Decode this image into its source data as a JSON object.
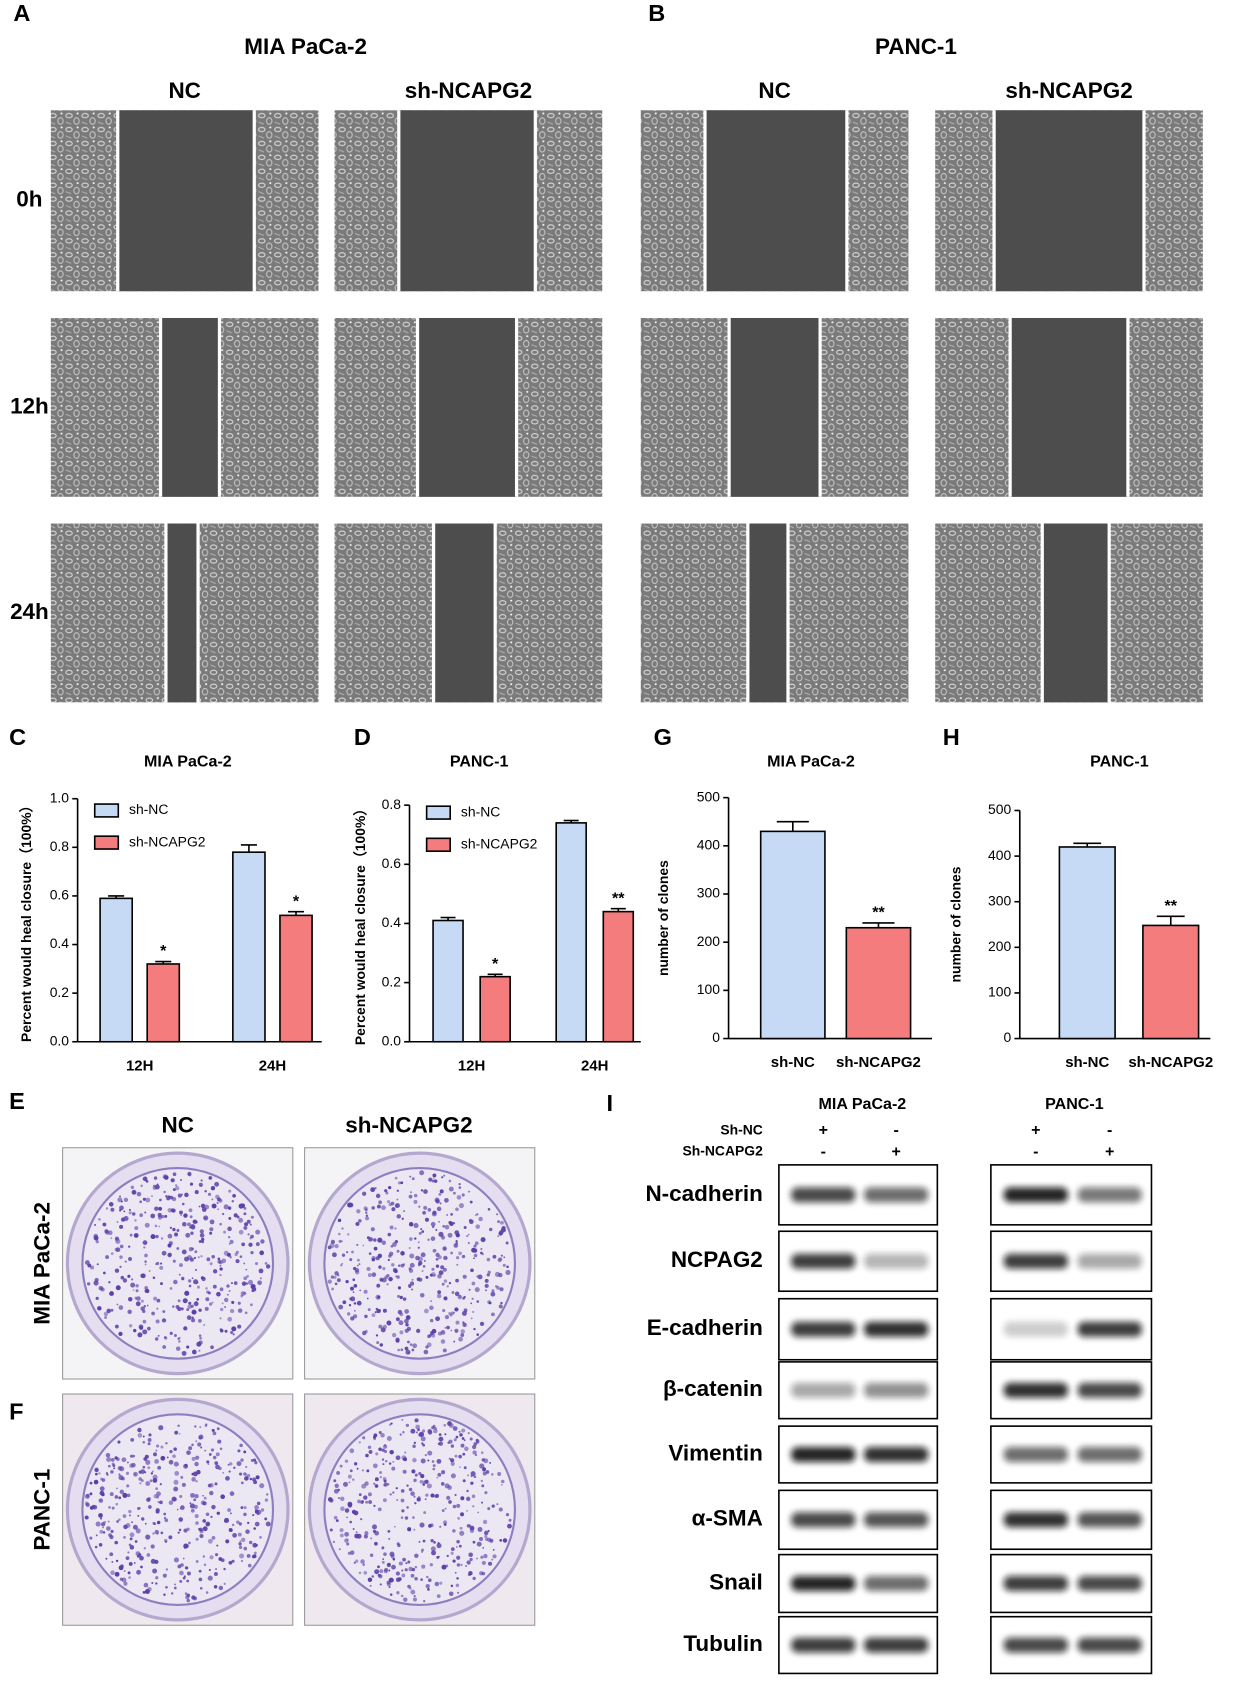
{
  "wound_healing": {
    "panels": [
      {
        "label": "A",
        "title": "MIA PaCa-2",
        "columns": [
          "NC",
          "sh-NCAPG2"
        ]
      },
      {
        "label": "B",
        "title": "PANC-1",
        "columns": [
          "NC",
          "sh-NCAPG2"
        ]
      }
    ],
    "rows": [
      "0h",
      "12h",
      "24h"
    ]
  },
  "chart_data": [
    {
      "type": "bar",
      "panel_label": "C",
      "title": "MIA PaCa-2",
      "y_label": "Percent would heal closure（100%）",
      "categories": [
        "12H",
        "24H"
      ],
      "series": [
        {
          "name": "sh-NC",
          "color": "#c6daf5",
          "values": [
            0.59,
            0.78
          ],
          "errors": [
            0.01,
            0.03
          ]
        },
        {
          "name": "sh-NCAPG2",
          "color": "#f47c7c",
          "values": [
            0.32,
            0.52
          ],
          "errors": [
            0.01,
            0.015
          ],
          "significance": [
            "*",
            "*"
          ]
        }
      ],
      "ylim": [
        0,
        1.0
      ],
      "yticks": [
        {
          "value": 0,
          "label": "0.0"
        },
        {
          "value": 0.2,
          "label": "0.2"
        },
        {
          "value": 0.4,
          "label": "0.4"
        },
        {
          "value": 0.6,
          "label": "0.6"
        },
        {
          "value": 0.8,
          "label": "0.8"
        },
        {
          "value": 1.0,
          "label": "1.0"
        }
      ],
      "legend": "upper-left"
    },
    {
      "type": "bar",
      "panel_label": "D",
      "title": "PANC-1",
      "y_label": "Percent would heal closure（100%）",
      "categories": [
        "12H",
        "24H"
      ],
      "series": [
        {
          "name": "sh-NC",
          "color": "#c6daf5",
          "values": [
            0.41,
            0.74
          ],
          "errors": [
            0.01,
            0.008
          ]
        },
        {
          "name": "sh-NCAPG2",
          "color": "#f47c7c",
          "values": [
            0.22,
            0.44
          ],
          "errors": [
            0.008,
            0.01
          ],
          "significance": [
            "*",
            "**"
          ]
        }
      ],
      "ylim": [
        0,
        0.8
      ],
      "yticks": [
        {
          "value": 0,
          "label": "0.0"
        },
        {
          "value": 0.2,
          "label": "0.2"
        },
        {
          "value": 0.4,
          "label": "0.4"
        },
        {
          "value": 0.6,
          "label": "0.6"
        },
        {
          "value": 0.8,
          "label": "0.8"
        }
      ],
      "legend": "upper-left"
    },
    {
      "type": "bar",
      "panel_label": "G",
      "title": "MIA PaCa-2",
      "y_label": "number of clones",
      "categories": [
        "sh-NC",
        "sh-NCAPG2"
      ],
      "values": [
        430,
        230
      ],
      "errors": [
        20,
        10
      ],
      "colors": [
        "#c6daf5",
        "#f47c7c"
      ],
      "significance": [
        null,
        "**"
      ],
      "ylim": [
        0,
        500
      ],
      "yticks": [
        0,
        100,
        200,
        300,
        400,
        500
      ]
    },
    {
      "type": "bar",
      "panel_label": "H",
      "title": "PANC-1",
      "y_label": "number of clones",
      "categories": [
        "sh-NC",
        "sh-NCAPG2"
      ],
      "values": [
        420,
        248
      ],
      "errors": [
        8,
        20
      ],
      "colors": [
        "#c6daf5",
        "#f47c7c"
      ],
      "significance": [
        null,
        "**"
      ],
      "ylim": [
        0,
        500
      ],
      "yticks": [
        0,
        100,
        200,
        300,
        400,
        500
      ]
    }
  ],
  "colony_formation": {
    "panels": [
      {
        "label": "E",
        "row": "MIA PaCa-2"
      },
      {
        "label": "F",
        "row": "PANC-1"
      }
    ],
    "columns": [
      "NC",
      "sh-NCAPG2"
    ]
  },
  "western_blot": {
    "label": "I",
    "cell_lines": [
      "MIA PaCa-2",
      "PANC-1"
    ],
    "conditions": [
      {
        "name": "Sh-NC",
        "signs": [
          "+",
          "-"
        ]
      },
      {
        "name": "Sh-NCAPG2",
        "signs": [
          "-",
          "+"
        ]
      }
    ],
    "proteins": [
      "N-cadherin",
      "NCPAG2",
      "E-cadherin",
      "β-catenin",
      "Vimentin",
      "α-SMA",
      "Snail",
      "Tubulin"
    ]
  }
}
